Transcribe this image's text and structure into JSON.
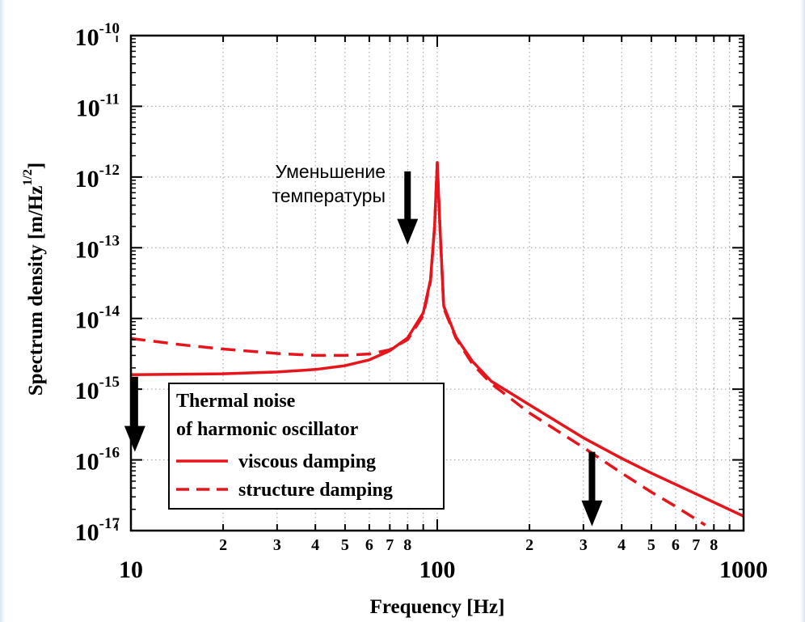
{
  "chart_data": {
    "type": "line",
    "xscale": "log",
    "yscale": "log",
    "xlim": [
      10,
      1000
    ],
    "ylim": [
      1e-17,
      1e-10
    ],
    "xlabel": "Frequency [Hz]",
    "ylabel": "Spectrum density [m/Hz",
    "ylabel_sup": "1/2",
    "ylabel_end": "]",
    "x_major_ticks": [
      {
        "value": 10,
        "label": "10"
      },
      {
        "value": 100,
        "label": "100"
      },
      {
        "value": 1000,
        "label": "1000"
      }
    ],
    "x_minor_ticks": [
      {
        "value": 20,
        "label": "2"
      },
      {
        "value": 30,
        "label": "3"
      },
      {
        "value": 40,
        "label": "4"
      },
      {
        "value": 50,
        "label": "5"
      },
      {
        "value": 60,
        "label": "6"
      },
      {
        "value": 70,
        "label": "7"
      },
      {
        "value": 80,
        "label": "8"
      },
      {
        "value": 200,
        "label": "2"
      },
      {
        "value": 300,
        "label": "3"
      },
      {
        "value": 400,
        "label": "4"
      },
      {
        "value": 500,
        "label": "5"
      },
      {
        "value": 600,
        "label": "6"
      },
      {
        "value": 700,
        "label": "7"
      },
      {
        "value": 800,
        "label": "8"
      }
    ],
    "y_ticks": [
      {
        "exp": -10,
        "base": "10",
        "sup": "-10"
      },
      {
        "exp": -11,
        "base": "10",
        "sup": "-11"
      },
      {
        "exp": -12,
        "base": "10",
        "sup": "-12"
      },
      {
        "exp": -13,
        "base": "10",
        "sup": "-13"
      },
      {
        "exp": -14,
        "base": "10",
        "sup": "-14"
      },
      {
        "exp": -15,
        "base": "10",
        "sup": "-15"
      },
      {
        "exp": -16,
        "base": "10",
        "sup": "-16"
      },
      {
        "exp": -17,
        "base": "10",
        "sup": "-17"
      }
    ],
    "series": [
      {
        "name": "viscous damping",
        "color": "#e8141b",
        "dash": "solid",
        "points": [
          [
            10,
            1.6e-15
          ],
          [
            20,
            1.65e-15
          ],
          [
            30,
            1.75e-15
          ],
          [
            40,
            1.9e-15
          ],
          [
            50,
            2.15e-15
          ],
          [
            60,
            2.6e-15
          ],
          [
            70,
            3.5e-15
          ],
          [
            80,
            5.3e-15
          ],
          [
            90,
            1.2e-14
          ],
          [
            95,
            3.5e-14
          ],
          [
            98,
            2e-13
          ],
          [
            100,
            1.6e-12
          ],
          [
            102,
            2e-13
          ],
          [
            105,
            1.5e-14
          ],
          [
            115,
            5.5e-15
          ],
          [
            130,
            2.5e-15
          ],
          [
            150,
            1.3e-15
          ],
          [
            200,
            6e-16
          ],
          [
            300,
            2.05e-16
          ],
          [
            400,
            1.05e-16
          ],
          [
            500,
            6.5e-17
          ],
          [
            700,
            3.3e-17
          ],
          [
            1000,
            1.6e-17
          ]
        ]
      },
      {
        "name": "structure damping",
        "color": "#e8141b",
        "dash": "dashed",
        "points": [
          [
            10,
            5.2e-15
          ],
          [
            15,
            4.2e-15
          ],
          [
            20,
            3.7e-15
          ],
          [
            30,
            3.2e-15
          ],
          [
            40,
            3e-15
          ],
          [
            50,
            3e-15
          ],
          [
            60,
            3.15e-15
          ],
          [
            70,
            3.6e-15
          ],
          [
            80,
            5e-15
          ],
          [
            90,
            1.1e-14
          ],
          [
            95,
            3.3e-14
          ],
          [
            98,
            2e-13
          ],
          [
            100,
            1.6e-12
          ],
          [
            102,
            2e-13
          ],
          [
            105,
            1.4e-14
          ],
          [
            115,
            5.3e-15
          ],
          [
            130,
            2.3e-15
          ],
          [
            150,
            1.2e-15
          ],
          [
            200,
            4.6e-16
          ],
          [
            300,
            1.5e-16
          ],
          [
            400,
            6.5e-17
          ],
          [
            500,
            3.5e-17
          ],
          [
            600,
            2.2e-17
          ],
          [
            750,
            1.2e-17
          ]
        ]
      }
    ],
    "legend": {
      "position": "lower-left",
      "title_line1": "Thermal noise",
      "title_line2": "of harmonic oscillator",
      "entries": [
        "viscous damping",
        "structure damping"
      ]
    },
    "annotations": {
      "text_line1": "Уменьшение",
      "text_line2": "температуры",
      "arrows": [
        {
          "x": 10.3,
          "from": 1.5e-15,
          "to": 1.3e-16
        },
        {
          "x": 80,
          "from": 1.2e-12,
          "to": 1.1e-13
        },
        {
          "x": 320,
          "from": 1.3e-16,
          "to": 1.15e-17
        }
      ]
    },
    "grid": true
  }
}
